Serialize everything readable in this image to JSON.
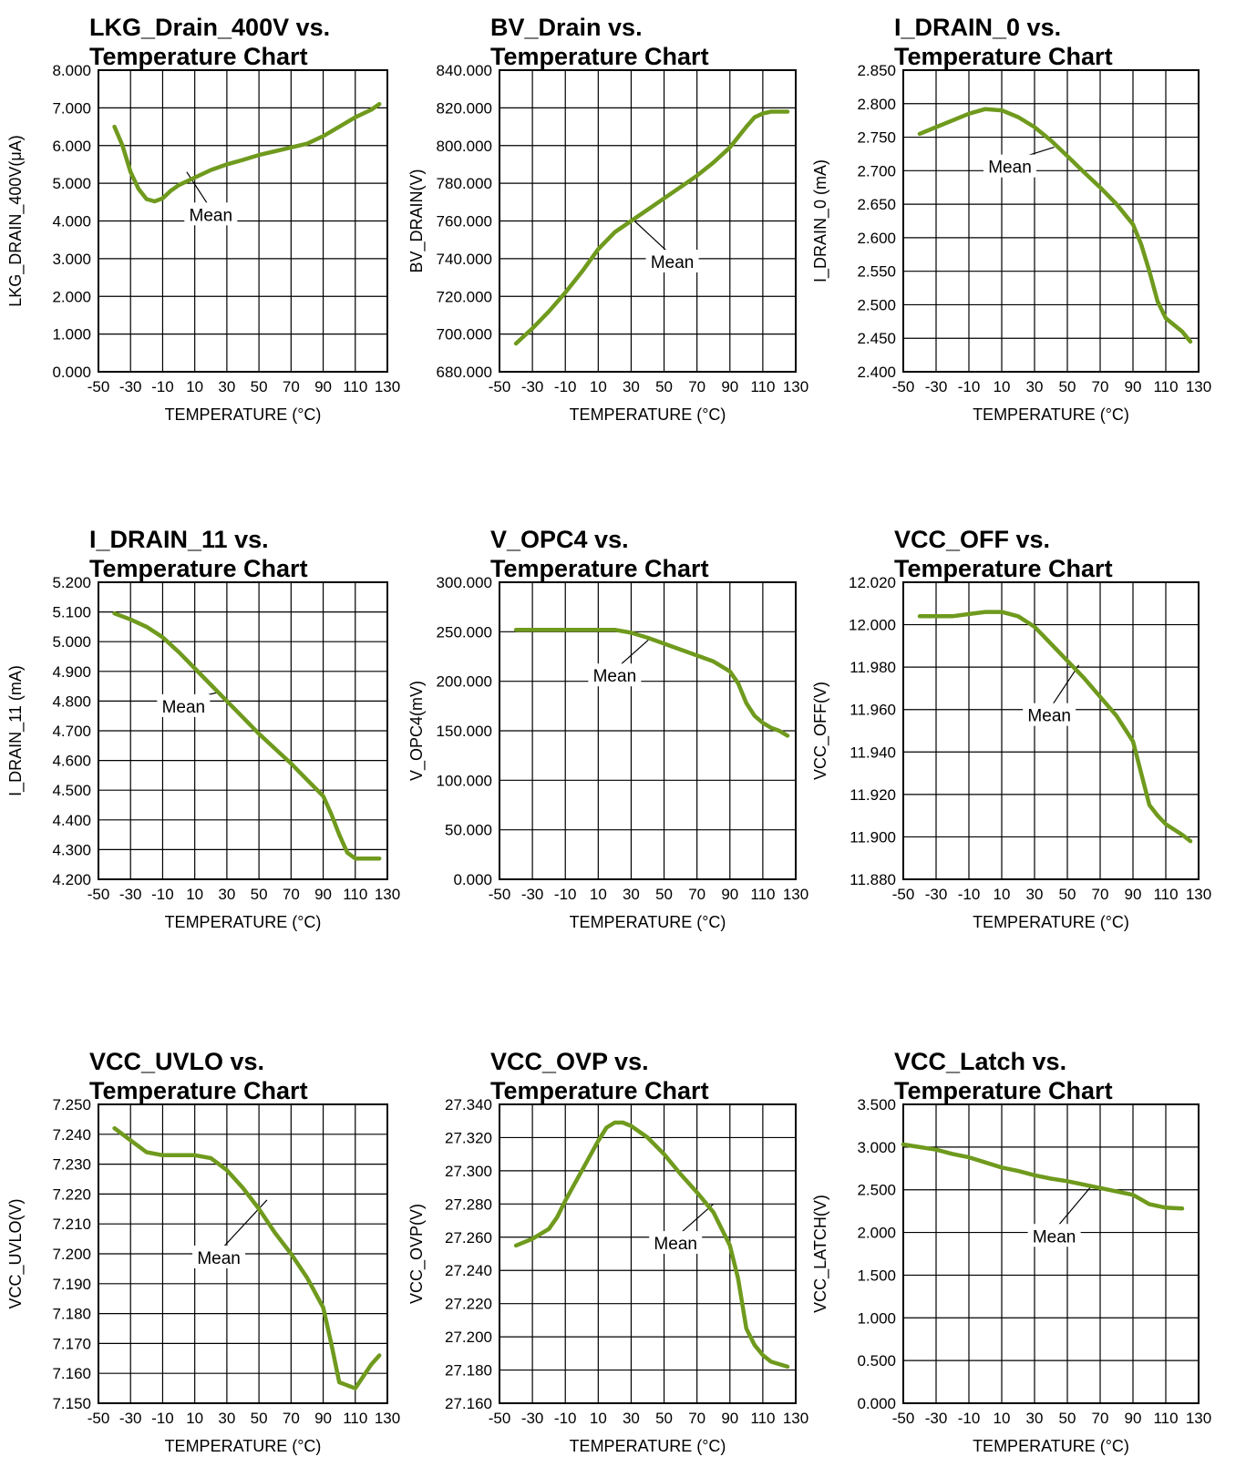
{
  "colors": {
    "series": "#6f9a1d",
    "grid": "#000000",
    "frame": "#000000",
    "background": "#ffffff"
  },
  "chart_data": [
    {
      "type": "line",
      "title": [
        "LKG_Drain_400V vs.",
        "Temperature Chart"
      ],
      "xlabel": "TEMPERATURE (°C)",
      "ylabel": "LKG_DRAIN_400V(μA)",
      "xlim": [
        -50,
        130
      ],
      "ylim": [
        0,
        8
      ],
      "x_ticks": [
        "-50",
        "-30",
        "-10",
        "10",
        "30",
        "50",
        "70",
        "90",
        "110",
        "130"
      ],
      "y_ticks": [
        "0.000",
        "1.000",
        "2.000",
        "3.000",
        "4.000",
        "5.000",
        "6.000",
        "7.000",
        "8.000"
      ],
      "grid": true,
      "annotation": {
        "text": "Mean",
        "x": 20,
        "y": 4.15,
        "point_x": 5,
        "point_y": 5.3
      },
      "series": [
        {
          "x": [
            -40,
            -35,
            -30,
            -25,
            -20,
            -15,
            -10,
            -5,
            0,
            10,
            20,
            30,
            40,
            50,
            60,
            70,
            80,
            90,
            100,
            110,
            120,
            125
          ],
          "values": [
            6.5,
            6.0,
            5.3,
            4.85,
            4.58,
            4.52,
            4.6,
            4.8,
            4.95,
            5.15,
            5.35,
            5.5,
            5.62,
            5.75,
            5.85,
            5.95,
            6.05,
            6.25,
            6.5,
            6.75,
            6.95,
            7.1
          ]
        }
      ]
    },
    {
      "type": "line",
      "title": [
        "BV_Drain vs.",
        "Temperature Chart"
      ],
      "xlabel": "TEMPERATURE (°C)",
      "ylabel": "BV_DRAIN(V)",
      "xlim": [
        -50,
        130
      ],
      "ylim": [
        680,
        840
      ],
      "x_ticks": [
        "-50",
        "-30",
        "-10",
        "10",
        "30",
        "50",
        "70",
        "90",
        "110",
        "130"
      ],
      "y_ticks": [
        "680.000",
        "700.000",
        "720.000",
        "740.000",
        "760.000",
        "780.000",
        "800.000",
        "820.000",
        "840.000"
      ],
      "grid": true,
      "annotation": {
        "text": "Mean",
        "x": 55,
        "y": 738,
        "point_x": 32,
        "point_y": 760
      },
      "series": [
        {
          "x": [
            -40,
            -30,
            -20,
            -10,
            0,
            10,
            20,
            30,
            40,
            50,
            60,
            70,
            80,
            90,
            100,
            105,
            110,
            115,
            125
          ],
          "values": [
            695,
            703,
            712,
            722,
            733,
            745,
            754,
            760,
            766,
            772,
            778,
            784,
            791,
            799,
            810,
            815,
            817,
            818,
            818
          ]
        }
      ]
    },
    {
      "type": "line",
      "title": [
        "I_DRAIN_0 vs.",
        "Temperature Chart"
      ],
      "xlabel": "TEMPERATURE (°C)",
      "ylabel": "I_DRAIN_0 (mA)",
      "xlim": [
        -50,
        130
      ],
      "ylim": [
        2.4,
        2.85
      ],
      "x_ticks": [
        "-50",
        "-30",
        "-10",
        "10",
        "30",
        "50",
        "70",
        "90",
        "110",
        "130"
      ],
      "y_ticks": [
        "2.400",
        "2.450",
        "2.500",
        "2.550",
        "2.600",
        "2.650",
        "2.700",
        "2.750",
        "2.800",
        "2.850"
      ],
      "grid": true,
      "annotation": {
        "text": "Mean",
        "x": 15,
        "y": 2.705,
        "point_x": 42,
        "point_y": 2.735
      },
      "series": [
        {
          "x": [
            -40,
            -30,
            -20,
            -10,
            0,
            10,
            20,
            30,
            40,
            50,
            60,
            70,
            80,
            90,
            95,
            100,
            105,
            110,
            120,
            125
          ],
          "values": [
            2.755,
            2.765,
            2.775,
            2.785,
            2.792,
            2.79,
            2.78,
            2.765,
            2.745,
            2.722,
            2.698,
            2.675,
            2.65,
            2.62,
            2.59,
            2.55,
            2.505,
            2.48,
            2.46,
            2.445
          ]
        }
      ]
    },
    {
      "type": "line",
      "title": [
        "I_DRAIN_11 vs.",
        "Temperature Chart"
      ],
      "xlabel": "TEMPERATURE (°C)",
      "ylabel": "I_DRAIN_11 (mA)",
      "xlim": [
        -50,
        130
      ],
      "ylim": [
        4.2,
        5.2
      ],
      "x_ticks": [
        "-50",
        "-30",
        "-10",
        "10",
        "30",
        "50",
        "70",
        "90",
        "110",
        "130"
      ],
      "y_ticks": [
        "4.200",
        "4.300",
        "4.400",
        "4.500",
        "4.600",
        "4.700",
        "4.800",
        "4.900",
        "5.000",
        "5.100",
        "5.200"
      ],
      "grid": true,
      "annotation": {
        "text": "Mean",
        "x": 3,
        "y": 4.78,
        "point_x": 25,
        "point_y": 4.83
      },
      "series": [
        {
          "x": [
            -40,
            -30,
            -20,
            -10,
            0,
            10,
            20,
            30,
            40,
            50,
            60,
            70,
            80,
            90,
            95,
            100,
            105,
            110,
            115,
            125
          ],
          "values": [
            5.095,
            5.075,
            5.05,
            5.015,
            4.965,
            4.91,
            4.855,
            4.8,
            4.745,
            4.69,
            4.64,
            4.59,
            4.535,
            4.48,
            4.42,
            4.35,
            4.29,
            4.27,
            4.27,
            4.27
          ]
        }
      ]
    },
    {
      "type": "line",
      "title": [
        "V_OPC4 vs.",
        "Temperature Chart"
      ],
      "xlabel": "TEMPERATURE (°C)",
      "ylabel": "V_OPC4(mV)",
      "xlim": [
        -50,
        130
      ],
      "ylim": [
        0,
        300
      ],
      "x_ticks": [
        "-50",
        "-30",
        "-10",
        "10",
        "30",
        "50",
        "70",
        "90",
        "110",
        "130"
      ],
      "y_ticks": [
        "0.000",
        "50.000",
        "100.000",
        "150.000",
        "200.000",
        "250.000",
        "300.000"
      ],
      "grid": true,
      "annotation": {
        "text": "Mean",
        "x": 20,
        "y": 205,
        "point_x": 42,
        "point_y": 244
      },
      "series": [
        {
          "x": [
            -40,
            -30,
            -20,
            -10,
            0,
            10,
            20,
            30,
            40,
            50,
            60,
            70,
            80,
            90,
            95,
            100,
            105,
            110,
            115,
            120,
            125
          ],
          "values": [
            252,
            252,
            252,
            252,
            252,
            252,
            252,
            249,
            244,
            238,
            232,
            226,
            220,
            210,
            198,
            178,
            165,
            158,
            153,
            150,
            145
          ]
        }
      ]
    },
    {
      "type": "line",
      "title": [
        "VCC_OFF vs.",
        "Temperature Chart"
      ],
      "xlabel": "TEMPERATURE (°C)",
      "ylabel": "VCC_OFF(V)",
      "xlim": [
        -50,
        130
      ],
      "ylim": [
        11.88,
        12.02
      ],
      "x_ticks": [
        "-50",
        "-30",
        "-10",
        "10",
        "30",
        "50",
        "70",
        "90",
        "110",
        "130"
      ],
      "y_ticks": [
        "11.880",
        "11.900",
        "11.920",
        "11.940",
        "11.960",
        "11.980",
        "12.000",
        "12.020"
      ],
      "grid": true,
      "annotation": {
        "text": "Mean",
        "x": 39,
        "y": 11.957,
        "point_x": 57,
        "point_y": 11.981
      },
      "series": [
        {
          "x": [
            -40,
            -30,
            -20,
            -10,
            0,
            10,
            20,
            30,
            40,
            50,
            60,
            70,
            80,
            90,
            95,
            100,
            105,
            110,
            120,
            125
          ],
          "values": [
            12.004,
            12.004,
            12.004,
            12.005,
            12.006,
            12.006,
            12.004,
            11.999,
            11.991,
            11.983,
            11.975,
            11.966,
            11.957,
            11.945,
            11.93,
            11.915,
            11.91,
            11.906,
            11.901,
            11.898
          ]
        }
      ]
    },
    {
      "type": "line",
      "title": [
        "VCC_UVLO vs.",
        "Temperature Chart"
      ],
      "xlabel": "TEMPERATURE (°C)",
      "ylabel": "VCC_UVLO(V)",
      "xlim": [
        -50,
        130
      ],
      "ylim": [
        7.15,
        7.25
      ],
      "x_ticks": [
        "-50",
        "-30",
        "-10",
        "10",
        "30",
        "50",
        "70",
        "90",
        "110",
        "130"
      ],
      "y_ticks": [
        "7.150",
        "7.160",
        "7.170",
        "7.180",
        "7.190",
        "7.200",
        "7.210",
        "7.220",
        "7.230",
        "7.240",
        "7.250"
      ],
      "grid": true,
      "annotation": {
        "text": "Mean",
        "x": 25,
        "y": 7.1985,
        "point_x": 55,
        "point_y": 7.218
      },
      "series": [
        {
          "x": [
            -40,
            -30,
            -20,
            -10,
            0,
            10,
            20,
            30,
            40,
            50,
            60,
            70,
            80,
            90,
            95,
            100,
            105,
            110,
            115,
            120,
            125
          ],
          "values": [
            7.242,
            7.238,
            7.234,
            7.233,
            7.233,
            7.233,
            7.232,
            7.228,
            7.222,
            7.215,
            7.207,
            7.2,
            7.192,
            7.182,
            7.17,
            7.157,
            7.156,
            7.155,
            7.159,
            7.163,
            7.166
          ]
        }
      ]
    },
    {
      "type": "line",
      "title": [
        "VCC_OVP vs.",
        "Temperature Chart"
      ],
      "xlabel": "TEMPERATURE (°C)",
      "ylabel": "VCC_OVP(V)",
      "xlim": [
        -50,
        130
      ],
      "ylim": [
        27.16,
        27.34
      ],
      "x_ticks": [
        "-50",
        "-30",
        "-10",
        "10",
        "30",
        "50",
        "70",
        "90",
        "110",
        "130"
      ],
      "y_ticks": [
        "27.160",
        "27.180",
        "27.200",
        "27.220",
        "27.240",
        "27.260",
        "27.280",
        "27.300",
        "27.320",
        "27.340"
      ],
      "grid": true,
      "annotation": {
        "text": "Mean",
        "x": 57,
        "y": 27.256,
        "point_x": 80,
        "point_y": 27.28
      },
      "series": [
        {
          "x": [
            -40,
            -30,
            -20,
            -15,
            -10,
            0,
            10,
            15,
            20,
            25,
            30,
            40,
            50,
            60,
            70,
            80,
            90,
            95,
            100,
            105,
            110,
            115,
            125
          ],
          "values": [
            27.255,
            27.259,
            27.265,
            27.272,
            27.282,
            27.3,
            27.318,
            27.326,
            27.329,
            27.329,
            27.327,
            27.32,
            27.31,
            27.298,
            27.287,
            27.275,
            27.255,
            27.235,
            27.205,
            27.195,
            27.189,
            27.185,
            27.182
          ]
        }
      ]
    },
    {
      "type": "line",
      "title": [
        "VCC_Latch vs.",
        "Temperature Chart"
      ],
      "xlabel": "TEMPERATURE (°C)",
      "ylabel": "VCC_LATCH(V)",
      "xlim": [
        -50,
        130
      ],
      "ylim": [
        0,
        3.5
      ],
      "x_ticks": [
        "-50",
        "-30",
        "-10",
        "10",
        "30",
        "50",
        "70",
        "90",
        "110",
        "130"
      ],
      "y_ticks": [
        "0.000",
        "0.500",
        "1.000",
        "1.500",
        "2.000",
        "2.500",
        "3.000",
        "3.500"
      ],
      "grid": true,
      "annotation": {
        "text": "Mean",
        "x": 42,
        "y": 1.95,
        "point_x": 65,
        "point_y": 2.55
      },
      "series": [
        {
          "x": [
            -50,
            -40,
            -30,
            -20,
            -10,
            0,
            10,
            20,
            30,
            40,
            50,
            60,
            70,
            80,
            90,
            100,
            110,
            120
          ],
          "values": [
            3.03,
            3.0,
            2.97,
            2.92,
            2.88,
            2.82,
            2.76,
            2.72,
            2.67,
            2.63,
            2.6,
            2.56,
            2.52,
            2.48,
            2.44,
            2.33,
            2.29,
            2.28
          ]
        }
      ]
    }
  ]
}
